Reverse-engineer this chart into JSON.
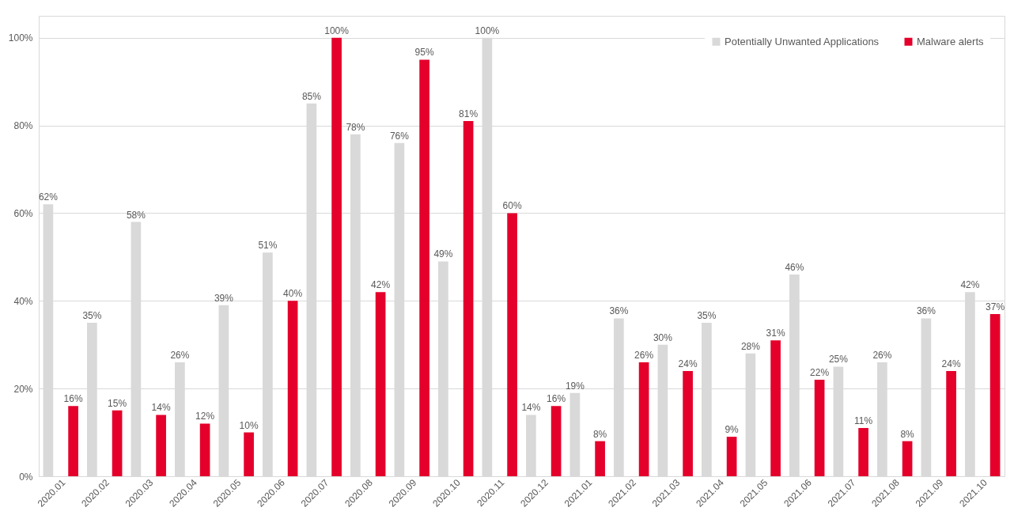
{
  "chart_data": {
    "type": "bar",
    "categories": [
      "2020.01",
      "2020.02",
      "2020.03",
      "2020.04",
      "2020.05",
      "2020.06",
      "2020.07",
      "2020.08",
      "2020.09",
      "2020.10",
      "2020.11",
      "2020.12",
      "2021.01",
      "2021.02",
      "2021.03",
      "2021.04",
      "2021.05",
      "2021.06",
      "2021.07",
      "2021.08",
      "2021.09",
      "2021.10"
    ],
    "series": [
      {
        "name": "Potentially Unwanted Applications",
        "color": "#d9d9d9",
        "values": [
          62,
          35,
          58,
          26,
          39,
          51,
          85,
          78,
          76,
          49,
          100,
          14,
          19,
          36,
          30,
          35,
          28,
          46,
          25,
          26,
          36,
          42
        ],
        "value_labels": [
          "62%",
          "35%",
          "58%",
          "26%",
          "39%",
          "51%",
          "85%",
          "78%",
          "76%",
          "49%",
          "100%",
          "14%",
          "19%",
          "36%",
          "30%",
          "35%",
          "28%",
          "46%",
          "25%",
          "26%",
          "36%",
          "42%"
        ]
      },
      {
        "name": "Malware alerts",
        "color": "#e4002b",
        "values": [
          16,
          15,
          14,
          12,
          10,
          40,
          100,
          42,
          95,
          81,
          60,
          16,
          8,
          26,
          24,
          9,
          31,
          22,
          11,
          8,
          24,
          37
        ],
        "value_labels": [
          "16%",
          "15%",
          "14%",
          "12%",
          "10%",
          "40%",
          "100%",
          "42%",
          "95%",
          "81%",
          "60%",
          "16%",
          "8%",
          "26%",
          "24%",
          "9%",
          "31%",
          "22%",
          "11%",
          "8%",
          "24%",
          "37%"
        ]
      }
    ],
    "ylim": [
      0,
      105
    ],
    "yticks": [
      {
        "value": 0,
        "label": "0%"
      },
      {
        "value": 20,
        "label": "20%"
      },
      {
        "value": 40,
        "label": "40%"
      },
      {
        "value": 60,
        "label": "60%"
      },
      {
        "value": 80,
        "label": "80%"
      },
      {
        "value": 100,
        "label": "100%"
      }
    ],
    "grid": "y",
    "legend": "top right"
  }
}
